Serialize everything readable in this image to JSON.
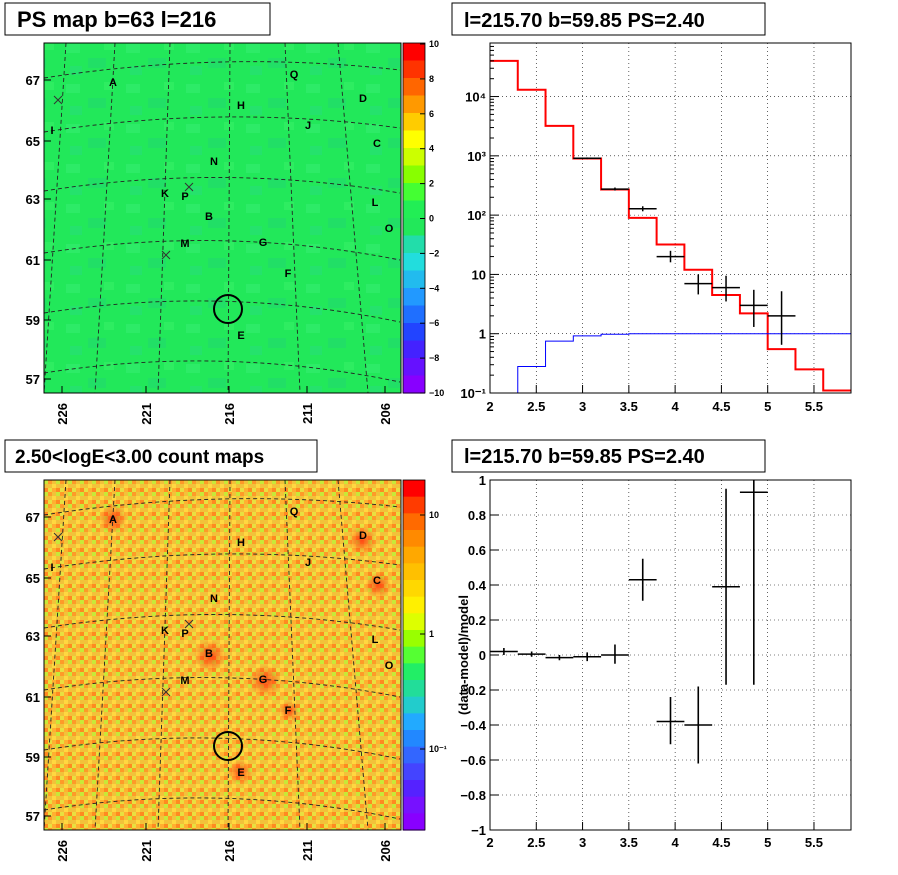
{
  "panels": {
    "tl_title": "PS map b=63 l=216",
    "tr_title": "l=215.70 b=59.85 PS=2.40",
    "bl_title": "2.50<logE<3.00 count maps",
    "br_title": "l=215.70 b=59.85 PS=2.40"
  },
  "sky_axes": {
    "x_ticks": [
      "226",
      "221",
      "216",
      "211",
      "206"
    ],
    "y_ticks": [
      "67",
      "65",
      "63",
      "61",
      "59",
      "57"
    ]
  },
  "sources": [
    "A",
    "H",
    "Q",
    "D",
    "I",
    "J",
    "C",
    "N",
    "K",
    "P",
    "L",
    "B",
    "O",
    "M",
    "G",
    "F",
    "E"
  ],
  "colors": {
    "ps_background": "#22e85a",
    "count_background": "#f2c23a",
    "model_line": "#ff0000",
    "second_line": "#0000ff",
    "data": "#000000"
  },
  "ps_colorbar": {
    "ticks": [
      "10",
      "8",
      "6",
      "4",
      "2",
      "0",
      "−2",
      "−4",
      "−6",
      "−8",
      "−10"
    ],
    "colors": [
      "#ff0000",
      "#ff3300",
      "#ff6600",
      "#ff9900",
      "#ffcc00",
      "#ffff00",
      "#ccff00",
      "#88ff00",
      "#44ff33",
      "#22ee55",
      "#22e85a",
      "#22ddaa",
      "#22dddd",
      "#22bbee",
      "#2299ff",
      "#1f6fff",
      "#2244ff",
      "#4422ff",
      "#6611ff",
      "#8800ff"
    ]
  },
  "count_colorbar": {
    "ticks": [
      "10",
      "1",
      "10⁻¹"
    ],
    "colors": [
      "#ff0000",
      "#ff3b00",
      "#ff6a00",
      "#ff8a00",
      "#ffa800",
      "#ffc000",
      "#ffd800",
      "#fff000",
      "#ddff00",
      "#99ff00",
      "#55ff33",
      "#22ee66",
      "#22dd99",
      "#22cccc",
      "#22aaff",
      "#2288ff",
      "#3366ff",
      "#4444ff",
      "#5522ff",
      "#7711ff",
      "#8800ff"
    ]
  },
  "chart_data": [
    {
      "type": "line",
      "title": "l=215.70 b=59.85 PS=2.40",
      "xlabel": "",
      "ylabel": "",
      "xlim": [
        2,
        5.9
      ],
      "ylim": [
        0.1,
        80000
      ],
      "yscale": "log",
      "x_ticks": [
        "2",
        "2.5",
        "3",
        "3.5",
        "4",
        "4.5",
        "5",
        "5.5"
      ],
      "y_ticks": [
        "10⁻¹",
        "1",
        "10",
        "10²",
        "10³",
        "10⁴"
      ],
      "series": [
        {
          "style": "step",
          "color": "#ff0000",
          "edges": [
            2.0,
            2.3,
            2.6,
            2.9,
            3.2,
            3.5,
            3.8,
            4.1,
            4.4,
            4.7,
            5.0,
            5.3,
            5.6,
            5.9
          ],
          "values": [
            40000,
            13000,
            3200,
            900,
            270,
            90,
            32,
            12,
            4.5,
            2.2,
            0.55,
            0.25,
            0.11
          ]
        },
        {
          "style": "step",
          "color": "#0000ff",
          "edges": [
            2.0,
            2.3,
            2.6,
            2.9,
            3.2,
            3.5,
            5.9
          ],
          "values": [
            0.06,
            0.28,
            0.75,
            0.92,
            0.98,
            1.0
          ]
        },
        {
          "style": "errorbars",
          "color": "#000000",
          "points": [
            {
              "x": 3.05,
              "y": 910,
              "xerr": 0.15,
              "ylo": 880,
              "yhi": 940
            },
            {
              "x": 3.35,
              "y": 275,
              "xerr": 0.15,
              "ylo": 260,
              "yhi": 292
            },
            {
              "x": 3.65,
              "y": 128,
              "xerr": 0.15,
              "ylo": 116,
              "yhi": 141
            },
            {
              "x": 3.95,
              "y": 20,
              "xerr": 0.15,
              "ylo": 16,
              "yhi": 25
            },
            {
              "x": 4.25,
              "y": 7,
              "xerr": 0.15,
              "ylo": 4.6,
              "yhi": 10
            },
            {
              "x": 4.55,
              "y": 6,
              "xerr": 0.15,
              "ylo": 3.5,
              "yhi": 9.5
            },
            {
              "x": 4.85,
              "y": 3,
              "xerr": 0.15,
              "ylo": 1.3,
              "yhi": 5.5
            },
            {
              "x": 5.15,
              "y": 2,
              "xerr": 0.15,
              "ylo": 0.65,
              "yhi": 5.2
            }
          ]
        }
      ]
    },
    {
      "type": "scatter",
      "title": "l=215.70 b=59.85 PS=2.40",
      "xlabel": "",
      "ylabel": "(data-model)/model",
      "xlim": [
        2,
        5.9
      ],
      "ylim": [
        -1,
        1
      ],
      "x_ticks": [
        "2",
        "2.5",
        "3",
        "3.5",
        "4",
        "4.5",
        "5",
        "5.5"
      ],
      "y_ticks": [
        "1",
        "0.8",
        "0.6",
        "0.4",
        "0.2",
        "0",
        "−0.2",
        "−0.4",
        "−0.6",
        "−0.8",
        "−1"
      ],
      "points": [
        {
          "x": 2.15,
          "y": 0.02,
          "xerr": 0.15,
          "ylo": 0.0,
          "yhi": 0.04
        },
        {
          "x": 2.45,
          "y": 0.005,
          "xerr": 0.15,
          "ylo": -0.01,
          "yhi": 0.02
        },
        {
          "x": 2.75,
          "y": -0.015,
          "xerr": 0.15,
          "ylo": -0.03,
          "yhi": 0.0
        },
        {
          "x": 3.05,
          "y": -0.01,
          "xerr": 0.15,
          "ylo": -0.035,
          "yhi": 0.015
        },
        {
          "x": 3.35,
          "y": 0.0,
          "xerr": 0.15,
          "ylo": -0.05,
          "yhi": 0.06
        },
        {
          "x": 3.65,
          "y": 0.43,
          "xerr": 0.15,
          "ylo": 0.31,
          "yhi": 0.55
        },
        {
          "x": 3.95,
          "y": -0.38,
          "xerr": 0.15,
          "ylo": -0.51,
          "yhi": -0.24
        },
        {
          "x": 4.25,
          "y": -0.4,
          "xerr": 0.15,
          "ylo": -0.62,
          "yhi": -0.18
        },
        {
          "x": 4.55,
          "y": 0.39,
          "xerr": 0.15,
          "ylo": -0.17,
          "yhi": 0.95
        },
        {
          "x": 4.85,
          "y": 0.93,
          "xerr": 0.15,
          "ylo": -0.17,
          "yhi": 1.0
        }
      ]
    }
  ]
}
